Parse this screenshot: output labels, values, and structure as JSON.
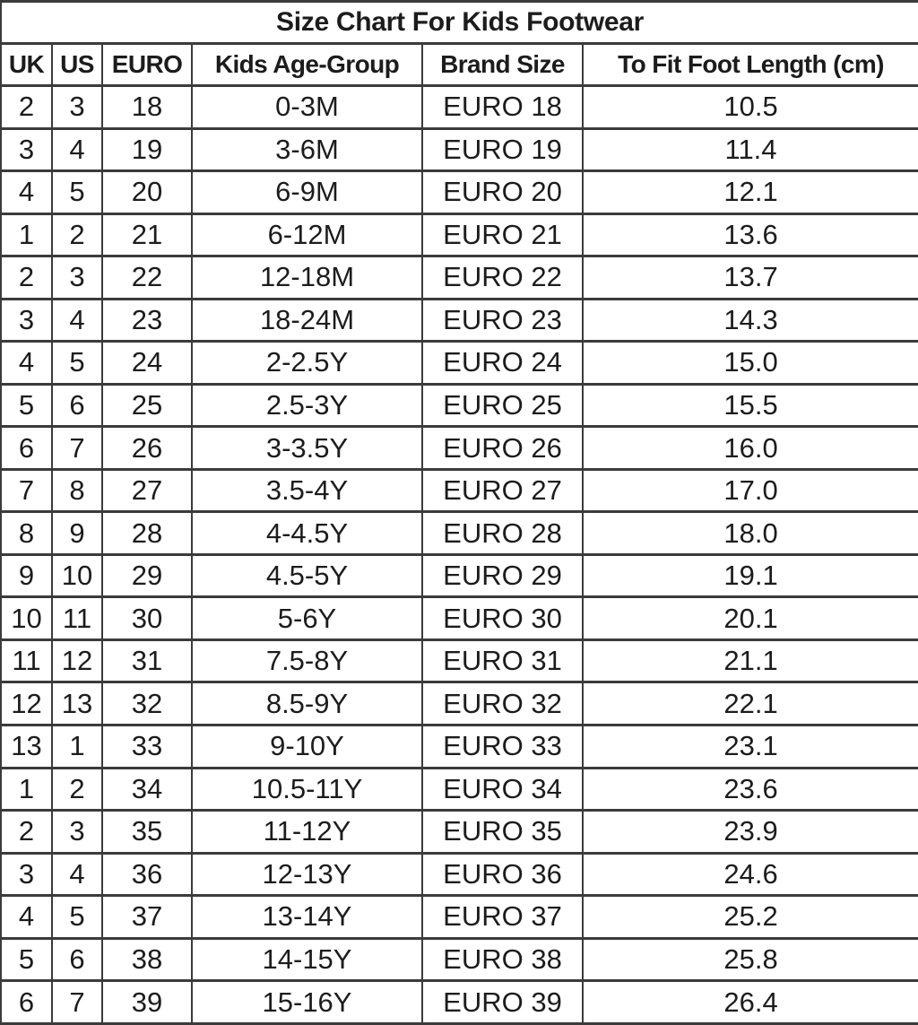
{
  "title": "Size Chart For Kids Footwear",
  "colors": {
    "background": "#ffffff",
    "text": "#1c1c1c",
    "grid_border": "#3b3b3b"
  },
  "chart_data": {
    "type": "table",
    "title": "Size Chart For Kids Footwear",
    "columns": [
      "UK",
      "US",
      "EURO",
      "Kids Age-Group",
      "Brand Size",
      "To Fit Foot Length (cm)"
    ],
    "rows": [
      [
        "2",
        "3",
        "18",
        "0-3M",
        "EURO 18",
        "10.5"
      ],
      [
        "3",
        "4",
        "19",
        "3-6M",
        "EURO 19",
        "11.4"
      ],
      [
        "4",
        "5",
        "20",
        "6-9M",
        "EURO 20",
        "12.1"
      ],
      [
        "1",
        "2",
        "21",
        "6-12M",
        "EURO 21",
        "13.6"
      ],
      [
        "2",
        "3",
        "22",
        "12-18M",
        "EURO 22",
        "13.7"
      ],
      [
        "3",
        "4",
        "23",
        "18-24M",
        "EURO 23",
        "14.3"
      ],
      [
        "4",
        "5",
        "24",
        "2-2.5Y",
        "EURO 24",
        "15.0"
      ],
      [
        "5",
        "6",
        "25",
        "2.5-3Y",
        "EURO 25",
        "15.5"
      ],
      [
        "6",
        "7",
        "26",
        "3-3.5Y",
        "EURO 26",
        "16.0"
      ],
      [
        "7",
        "8",
        "27",
        "3.5-4Y",
        "EURO 27",
        "17.0"
      ],
      [
        "8",
        "9",
        "28",
        "4-4.5Y",
        "EURO 28",
        "18.0"
      ],
      [
        "9",
        "10",
        "29",
        "4.5-5Y",
        "EURO 29",
        "19.1"
      ],
      [
        "10",
        "11",
        "30",
        "5-6Y",
        "EURO 30",
        "20.1"
      ],
      [
        "11",
        "12",
        "31",
        "7.5-8Y",
        "EURO 31",
        "21.1"
      ],
      [
        "12",
        "13",
        "32",
        "8.5-9Y",
        "EURO 32",
        "22.1"
      ],
      [
        "13",
        "1",
        "33",
        "9-10Y",
        "EURO 33",
        "23.1"
      ],
      [
        "1",
        "2",
        "34",
        "10.5-11Y",
        "EURO 34",
        "23.6"
      ],
      [
        "2",
        "3",
        "35",
        "11-12Y",
        "EURO 35",
        "23.9"
      ],
      [
        "3",
        "4",
        "36",
        "12-13Y",
        "EURO 36",
        "24.6"
      ],
      [
        "4",
        "5",
        "37",
        "13-14Y",
        "EURO 37",
        "25.2"
      ],
      [
        "5",
        "6",
        "38",
        "14-15Y",
        "EURO 38",
        "25.8"
      ],
      [
        "6",
        "7",
        "39",
        "15-16Y",
        "EURO 39",
        "26.4"
      ]
    ]
  }
}
